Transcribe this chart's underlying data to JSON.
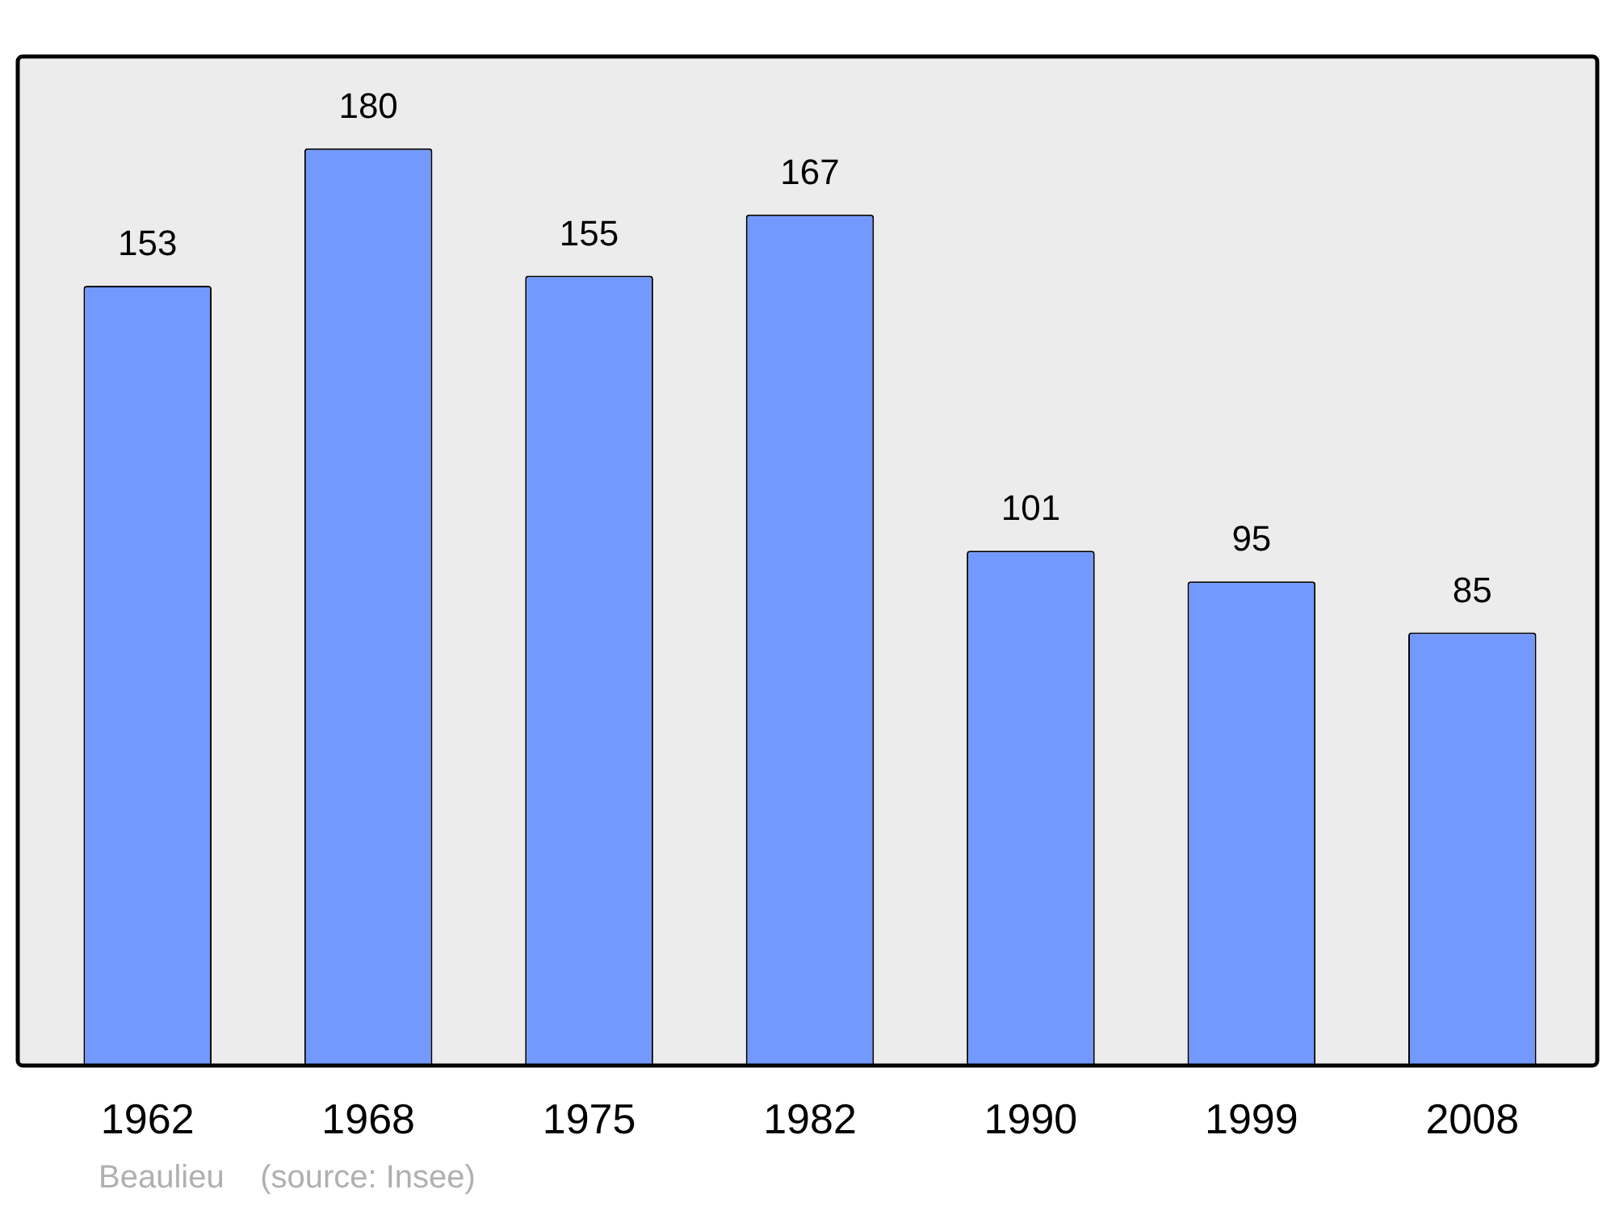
{
  "chart_data": {
    "type": "bar",
    "categories": [
      "1962",
      "1968",
      "1975",
      "1982",
      "1990",
      "1999",
      "2008"
    ],
    "values": [
      153,
      180,
      155,
      167,
      101,
      95,
      85
    ],
    "color": "#7399ff",
    "ylim": [
      0,
      198
    ],
    "data_labels": true,
    "annotations": [
      "Beaulieu    (source: Insee)"
    ]
  }
}
